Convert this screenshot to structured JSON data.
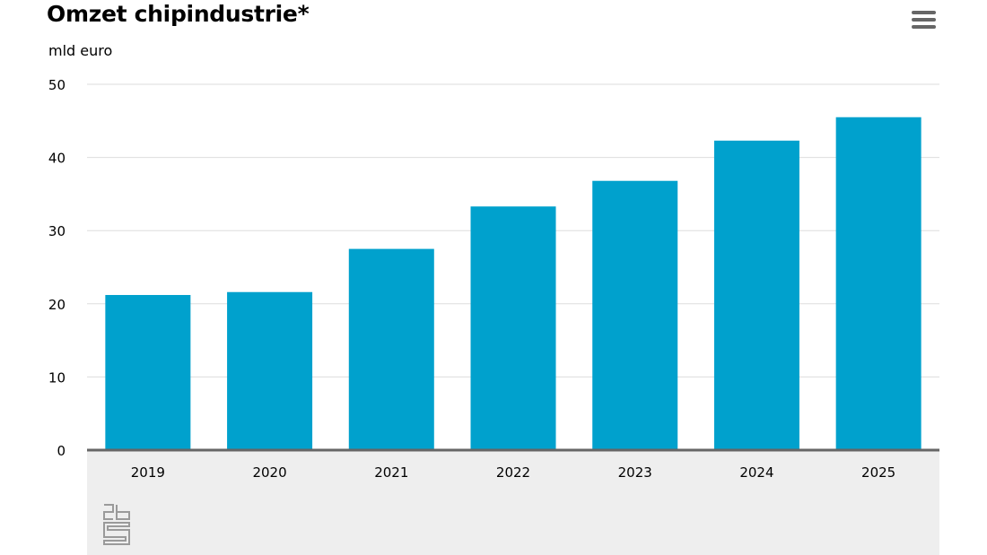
{
  "header": {
    "title": "Omzet chipindustrie*",
    "unit_label": "mld euro",
    "menu_icon": "hamburger-menu-icon"
  },
  "footer": {
    "logo_icon": "cbs-logo-icon"
  },
  "colors": {
    "bar": "#00a1cd",
    "grid": "#dddddd",
    "baseline": "#666666",
    "footer_bg": "#eeeeee"
  },
  "chart_data": {
    "type": "bar",
    "title": "Omzet chipindustrie*",
    "ylabel": "mld euro",
    "xlabel": "",
    "categories": [
      "2019",
      "2020",
      "2021",
      "2022",
      "2023",
      "2024",
      "2025"
    ],
    "values": [
      21.2,
      21.6,
      27.5,
      33.3,
      36.8,
      42.3,
      45.5
    ],
    "ylim": [
      0,
      50
    ],
    "yticks": [
      0,
      10,
      20,
      30,
      40,
      50
    ],
    "grid": true,
    "legend": "none"
  }
}
